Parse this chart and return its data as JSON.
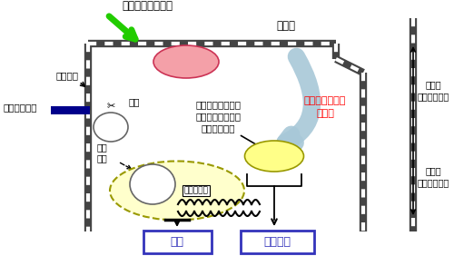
{
  "title_top": "細胞極性制御因子",
  "label_ventricular_face": "脳室面",
  "label_ventricular_side": "脳室側\n（脳の内側）",
  "label_meningeal_side": "脳膜側\n（脳の外側）",
  "label_active_control": "活性制御",
  "label_diff_inhibitor": "分化抑制因子",
  "label_cut": "切断",
  "label_gene_exp_text": "遺伝子発現によら\nない細胞極性制御\n因子の活性化",
  "label_nuclear_move": "核に\n移動",
  "label_gene_exp": "遺伝子発現",
  "label_feedback": "フィードバック\nループ",
  "label_diff": "分化",
  "label_cell_polarity": "細胞極性",
  "bg_color": "#ffffff",
  "chain_color": "#444444",
  "pink_ellipse_color": "#F4A0A8",
  "yellow_ellipse_color": "#FFFF88",
  "nucleus_fill_color": "#FFFFCC",
  "green_arrow_color": "#22CC00",
  "blue_bar_color": "#00008B",
  "feedback_arrow_color": "#A8C8D8",
  "box_edge_color": "#3333BB",
  "box_text_color": "#3333BB"
}
